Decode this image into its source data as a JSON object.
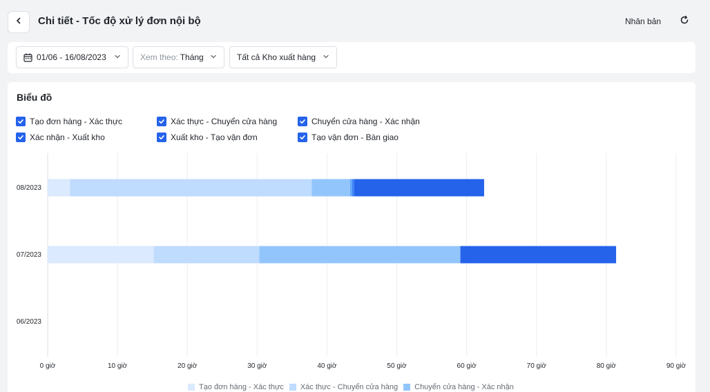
{
  "header": {
    "title": "Chi tiết - Tốc độ xử lý đơn nội bộ",
    "duplicate_label": "Nhân bản"
  },
  "filters": {
    "date_range": "01/06 - 16/08/2023",
    "view_by_prefix": "Xem theo:",
    "view_by_value": "Tháng",
    "warehouse": "Tất cả Kho xuất hàng"
  },
  "chart_card": {
    "title": "Biểu đồ"
  },
  "series_toggles": [
    {
      "label": "Tạo đơn hàng - Xác thực",
      "checked": true
    },
    {
      "label": "Xác thực - Chuyển cửa hàng",
      "checked": true
    },
    {
      "label": "Chuyển cửa hàng - Xác nhận",
      "checked": true
    },
    {
      "label": "Xác nhận - Xuất kho",
      "checked": true
    },
    {
      "label": "Xuất kho - Tạo vận đơn",
      "checked": true
    },
    {
      "label": "Tạo vận đơn - Bàn giao",
      "checked": true
    }
  ],
  "colors": {
    "accent": "#2563eb",
    "series": [
      "#dbeafe",
      "#bfdbfe",
      "#93c5fd",
      "#60a5fa",
      "#3b82f6",
      "#2563eb"
    ]
  },
  "chart_data": {
    "type": "bar",
    "orientation": "horizontal",
    "stacked": true,
    "categories": [
      "08/2023",
      "07/2023",
      "06/2023"
    ],
    "series": [
      {
        "name": "Tạo đơn hàng - Xác thực",
        "values": [
          3.2,
          15.2,
          0
        ]
      },
      {
        "name": "Xác thực - Chuyển cửa hàng",
        "values": [
          34.6,
          15.1,
          0
        ]
      },
      {
        "name": "Chuyển cửa hàng - Xác nhận",
        "values": [
          5.5,
          28.8,
          0
        ]
      },
      {
        "name": "Xác nhận - Xuất kho",
        "values": [
          0.3,
          0,
          0
        ]
      },
      {
        "name": "Xuất kho - Tạo vận đơn",
        "values": [
          0.3,
          0,
          0
        ]
      },
      {
        "name": "Tạo vận đơn - Bàn giao",
        "values": [
          18.6,
          22.3,
          0
        ]
      }
    ],
    "x_ticks": [
      "0 giờ",
      "10 giờ",
      "20 giờ",
      "30 giờ",
      "40 giờ",
      "50 giờ",
      "60 giờ",
      "70 giờ",
      "80 giờ",
      "90 giờ"
    ],
    "xlim": [
      0,
      90
    ],
    "grid": true,
    "legend_position": "bottom"
  },
  "bottom_legend": [
    {
      "label": "Tạo đơn hàng - Xác thực"
    },
    {
      "label": "Xác thực - Chuyển cửa hàng"
    },
    {
      "label": "Chuyển cửa hàng - Xác nhận"
    }
  ]
}
